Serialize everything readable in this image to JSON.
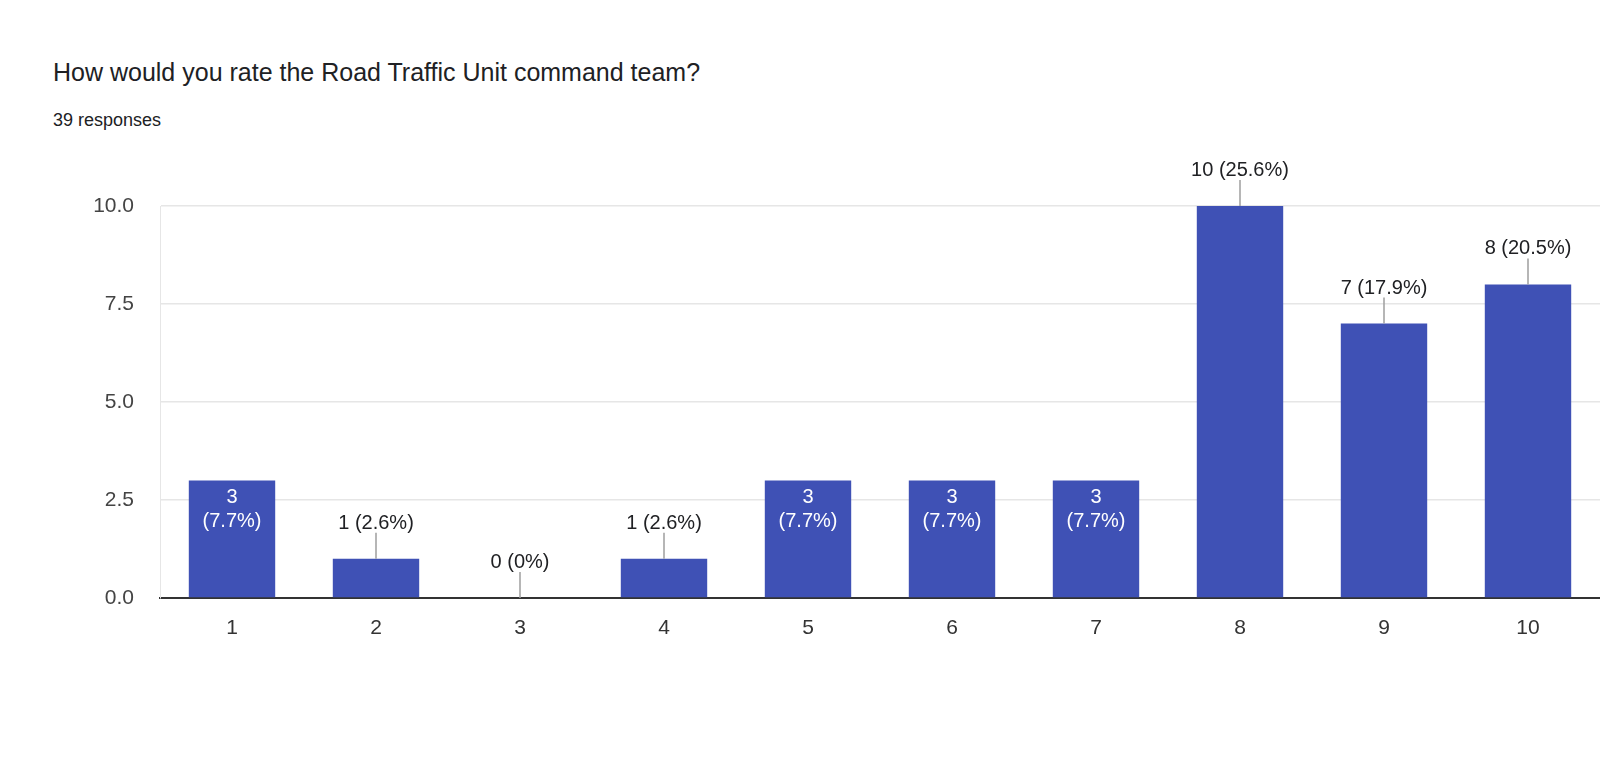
{
  "chart_data": {
    "type": "bar",
    "title": "How would you rate the Road Traffic Unit command team?",
    "subtitle": "39 responses",
    "categories": [
      "1",
      "2",
      "3",
      "4",
      "5",
      "6",
      "7",
      "8",
      "9",
      "10"
    ],
    "values": [
      3,
      1,
      0,
      1,
      3,
      3,
      3,
      10,
      7,
      8
    ],
    "value_labels": [
      "3 (7.7%)",
      "1 (2.6%)",
      "0 (0%)",
      "1 (2.6%)",
      "3 (7.7%)",
      "3 (7.7%)",
      "3 (7.7%)",
      "10 (25.6%)",
      "7 (17.9%)",
      "8 (20.5%)"
    ],
    "data_labels": true,
    "color": "#3f51b5",
    "ylim": [
      0,
      10
    ],
    "yticks": [
      {
        "value": 0,
        "label": "0.0"
      },
      2.5,
      {
        "value": 5,
        "label": "5.0"
      },
      7.5,
      {
        "value": 10,
        "label": "10.0"
      }
    ],
    "grid": true
  }
}
